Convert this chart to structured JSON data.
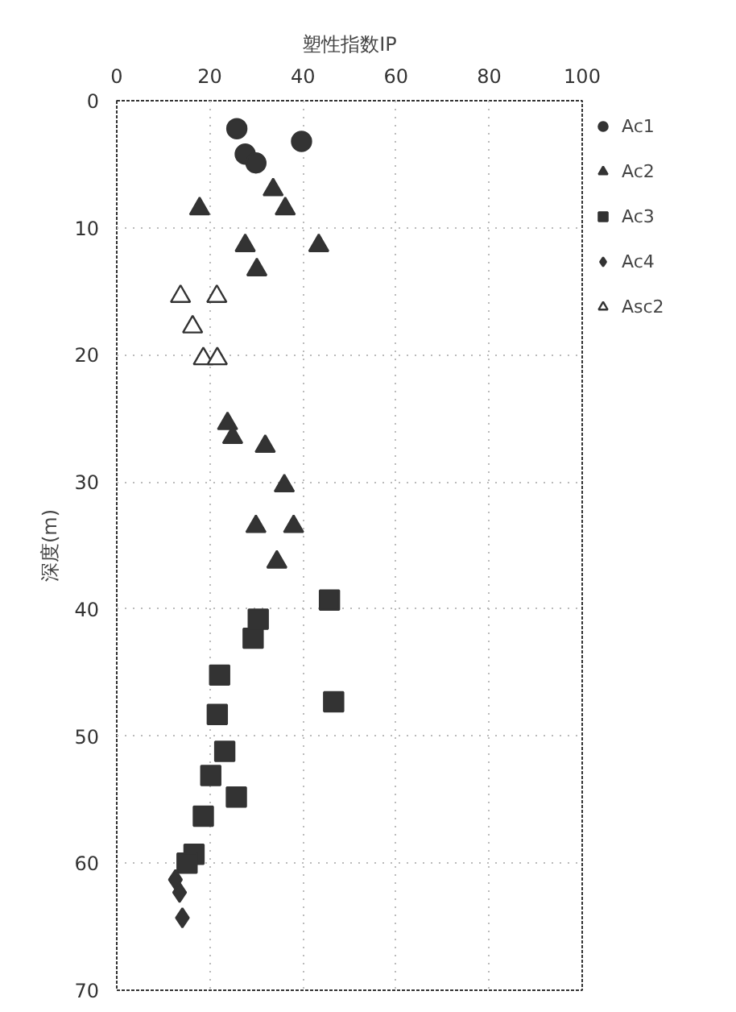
{
  "chart_data": {
    "type": "scatter",
    "xlabel": "塑性指数IP",
    "ylabel": "深度(m)",
    "xlim": [
      0,
      100
    ],
    "xticks": [
      0,
      20,
      40,
      60,
      80,
      100
    ],
    "ylim": [
      70,
      0
    ],
    "yticks": [
      0,
      10,
      20,
      30,
      40,
      50,
      60,
      70
    ],
    "grid": true,
    "legend": "right",
    "series": [
      {
        "name": "Ac1",
        "color": "#333333",
        "marker": "circle",
        "x": [
          25.8,
          39.7,
          27.6,
          29.9
        ],
        "values": [
          2.2,
          3.2,
          4.2,
          4.9
        ]
      },
      {
        "name": "Ac2",
        "color": "#333333",
        "marker": "triangle",
        "x": [
          33.6,
          17.8,
          36.2,
          27.6,
          43.4,
          30.1,
          23.8,
          24.9,
          31.9,
          36.0,
          29.9,
          38.0,
          34.4
        ],
        "values": [
          7.0,
          8.5,
          8.5,
          11.4,
          11.4,
          13.3,
          25.4,
          26.5,
          27.2,
          30.3,
          33.5,
          33.5,
          36.3
        ]
      },
      {
        "name": "Ac3",
        "color": "#333333",
        "marker": "square",
        "x": [
          45.7,
          30.4,
          29.3,
          22.1,
          46.6,
          21.6,
          23.2,
          20.2,
          25.7,
          18.6,
          16.6,
          15.1
        ],
        "values": [
          39.3,
          40.8,
          42.3,
          45.2,
          47.3,
          48.3,
          51.2,
          53.1,
          54.8,
          56.3,
          59.3,
          60.0
        ]
      },
      {
        "name": "Ac4",
        "color": "#333333",
        "marker": "diamond",
        "x": [
          12.6,
          13.5,
          14.1
        ],
        "values": [
          61.3,
          62.3,
          64.3
        ]
      },
      {
        "name": "Asc2",
        "color": "#333333",
        "marker": "triangle-open",
        "x": [
          13.7,
          21.5,
          16.3,
          18.6,
          21.6
        ],
        "values": [
          15.4,
          15.4,
          17.8,
          20.3,
          20.3
        ]
      }
    ]
  }
}
